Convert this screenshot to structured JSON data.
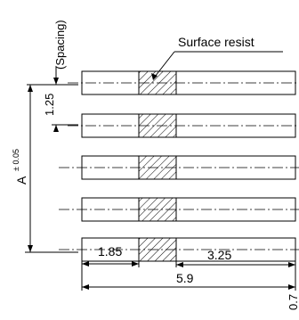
{
  "labels": {
    "spacing": "(Spacing)",
    "surface_resist": "Surface resist",
    "pitch": "1.25",
    "dim_a": "A",
    "dim_a_tol": "± 0.05",
    "left_offset": "1.85",
    "right_part": "3.25",
    "total_length": "5.9",
    "edge_value": "0.7"
  },
  "pads": {
    "count": 5
  },
  "colors": {
    "line": "#000000",
    "background": "#ffffff"
  }
}
